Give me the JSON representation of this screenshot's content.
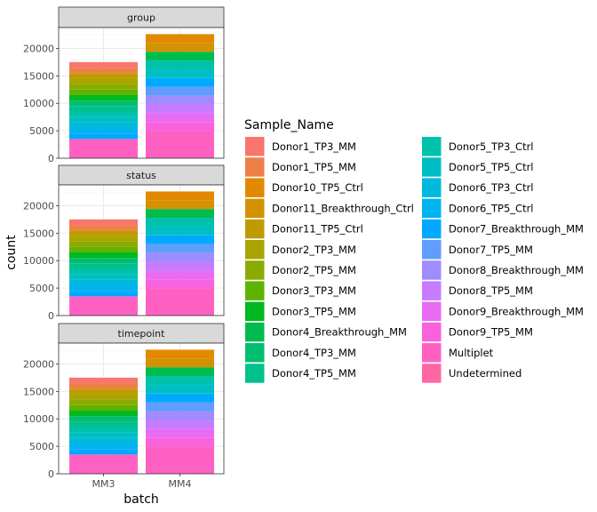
{
  "chart_data": {
    "type": "bar",
    "stacked": true,
    "faceted": true,
    "xlabel": "batch",
    "ylabel": "count",
    "categories": [
      "MM3",
      "MM4"
    ],
    "y_ticks": [
      0,
      5000,
      10000,
      15000,
      20000
    ],
    "ylim": [
      0,
      23800
    ],
    "grid": true,
    "legend_title": "Sample_Name",
    "legend_position": "right",
    "facets": [
      "group",
      "status",
      "timepoint"
    ],
    "series": [
      {
        "name": "Donor1_TP3_MM",
        "color": "#F8766D",
        "values": [
          1000,
          0
        ]
      },
      {
        "name": "Donor1_TP5_MM",
        "color": "#EF7F49",
        "values": [
          1000,
          0
        ]
      },
      {
        "name": "Donor10_TP5_Ctrl",
        "color": "#E38900",
        "values": [
          0,
          1600
        ]
      },
      {
        "name": "Donor11_Breakthrough_Ctrl",
        "color": "#D39200",
        "values": [
          0,
          1600
        ]
      },
      {
        "name": "Donor11_TP5_Ctrl",
        "color": "#C09B00",
        "values": [
          1000,
          0
        ]
      },
      {
        "name": "Donor2_TP3_MM",
        "color": "#A9A400",
        "values": [
          1000,
          0
        ]
      },
      {
        "name": "Donor2_TP5_MM",
        "color": "#8CAB00",
        "values": [
          1000,
          0
        ]
      },
      {
        "name": "Donor3_TP3_MM",
        "color": "#5EB300",
        "values": [
          1000,
          0
        ]
      },
      {
        "name": "Donor3_TP5_MM",
        "color": "#00B81F",
        "values": [
          1000,
          0
        ]
      },
      {
        "name": "Donor4_Breakthrough_MM",
        "color": "#00BB4E",
        "values": [
          0,
          1600
        ]
      },
      {
        "name": "Donor4_TP3_MM",
        "color": "#00BE70",
        "values": [
          1000,
          0
        ]
      },
      {
        "name": "Donor4_TP5_MM",
        "color": "#00C08E",
        "values": [
          1000,
          0
        ]
      },
      {
        "name": "Donor5_TP3_Ctrl",
        "color": "#00C1A9",
        "values": [
          1000,
          1600
        ]
      },
      {
        "name": "Donor5_TP5_Ctrl",
        "color": "#00BFC4",
        "values": [
          1000,
          1600
        ]
      },
      {
        "name": "Donor6_TP3_Ctrl",
        "color": "#00BADE",
        "values": [
          1000,
          0
        ]
      },
      {
        "name": "Donor6_TP5_Ctrl",
        "color": "#00B4F0",
        "values": [
          1000,
          0
        ]
      },
      {
        "name": "Donor7_Breakthrough_MM",
        "color": "#00A9FF",
        "values": [
          1000,
          1600
        ]
      },
      {
        "name": "Donor7_TP5_MM",
        "color": "#619CFF",
        "values": [
          0,
          1600
        ]
      },
      {
        "name": "Donor8_Breakthrough_MM",
        "color": "#9F8CFF",
        "values": [
          0,
          1600
        ]
      },
      {
        "name": "Donor8_TP5_MM",
        "color": "#C77CFF",
        "values": [
          0,
          1600
        ]
      },
      {
        "name": "Donor9_Breakthrough_MM",
        "color": "#E76BF3",
        "values": [
          0,
          1600
        ]
      },
      {
        "name": "Donor9_TP5_MM",
        "color": "#F962DD",
        "values": [
          0,
          1600
        ]
      },
      {
        "name": "Multiplet",
        "color": "#FF61C3",
        "values": [
          3500,
          5000
        ]
      },
      {
        "name": "Undetermined",
        "color": "#FF67A4",
        "values": [
          0,
          0
        ]
      }
    ]
  }
}
